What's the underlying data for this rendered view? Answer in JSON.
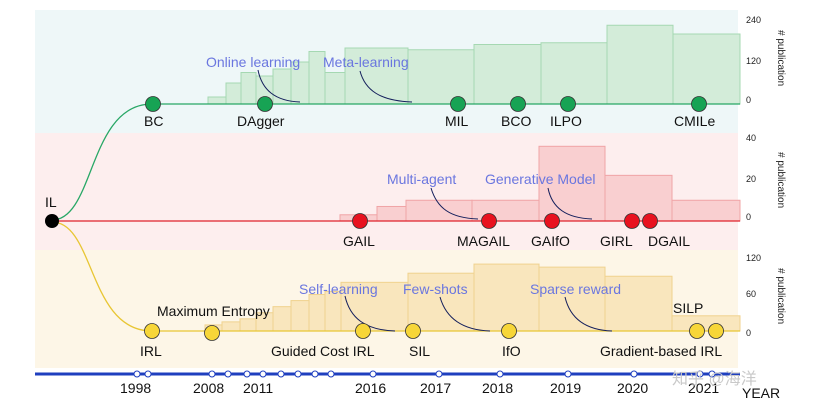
{
  "colors": {
    "bc_band": "#eef7f8",
    "gail_band": "#fdeeee",
    "irl_band": "#fdf6e7",
    "bc_line": "#28a766",
    "gail_line": "#e0212b",
    "irl_line": "#e8c634",
    "bc_node": "#17a354",
    "gail_node": "#e8121f",
    "irl_node": "#f7d638",
    "annotation": "#6a76df",
    "timeline": "#1f3fbf"
  },
  "root_label": "IL",
  "bands": {
    "bc": {
      "axis_title": "# publication",
      "ticks": [
        "240",
        "120",
        "0"
      ],
      "ymax": 240,
      "nodes": [
        "BC",
        "DAgger",
        "MIL",
        "BCO",
        "ILPO",
        "CMILe"
      ],
      "annotations": [
        "Online learning",
        "Meta-learning"
      ],
      "bars": [
        20,
        60,
        90,
        80,
        100,
        120,
        150,
        90,
        160,
        155,
        170,
        175,
        225,
        200,
        55
      ]
    },
    "gail": {
      "axis_title": "# publication",
      "ticks": [
        "40",
        "20",
        "0"
      ],
      "ymax": 40,
      "nodes": [
        "GAIL",
        "MAGAIL",
        "GAIfO",
        "GIRL",
        "DGAIL"
      ],
      "annotations": [
        "Multi-agent",
        "Generative Model"
      ],
      "bars": [
        1,
        3,
        7,
        10,
        10,
        36,
        22,
        10
      ]
    },
    "irl": {
      "axis_title": "# publication",
      "ticks": [
        "120",
        "60",
        "0"
      ],
      "ymax": 120,
      "nodes": [
        "IRL",
        "Maximum Entropy",
        "Guided Cost IRL",
        "SIL",
        "IfO",
        "Gradient-based IRL",
        "SILP"
      ],
      "annotations": [
        "Self-learning",
        "Few-shots",
        "Sparse reward"
      ],
      "bars": [
        5,
        10,
        15,
        20,
        30,
        40,
        50,
        60,
        65,
        80,
        95,
        110,
        105,
        90,
        25
      ]
    }
  },
  "timeline": {
    "label": "YEAR",
    "years": [
      "1998",
      "2008",
      "2011",
      "2016",
      "2017",
      "2018",
      "2019",
      "2020",
      "2021"
    ]
  },
  "watermark": "知乎 @海洋"
}
